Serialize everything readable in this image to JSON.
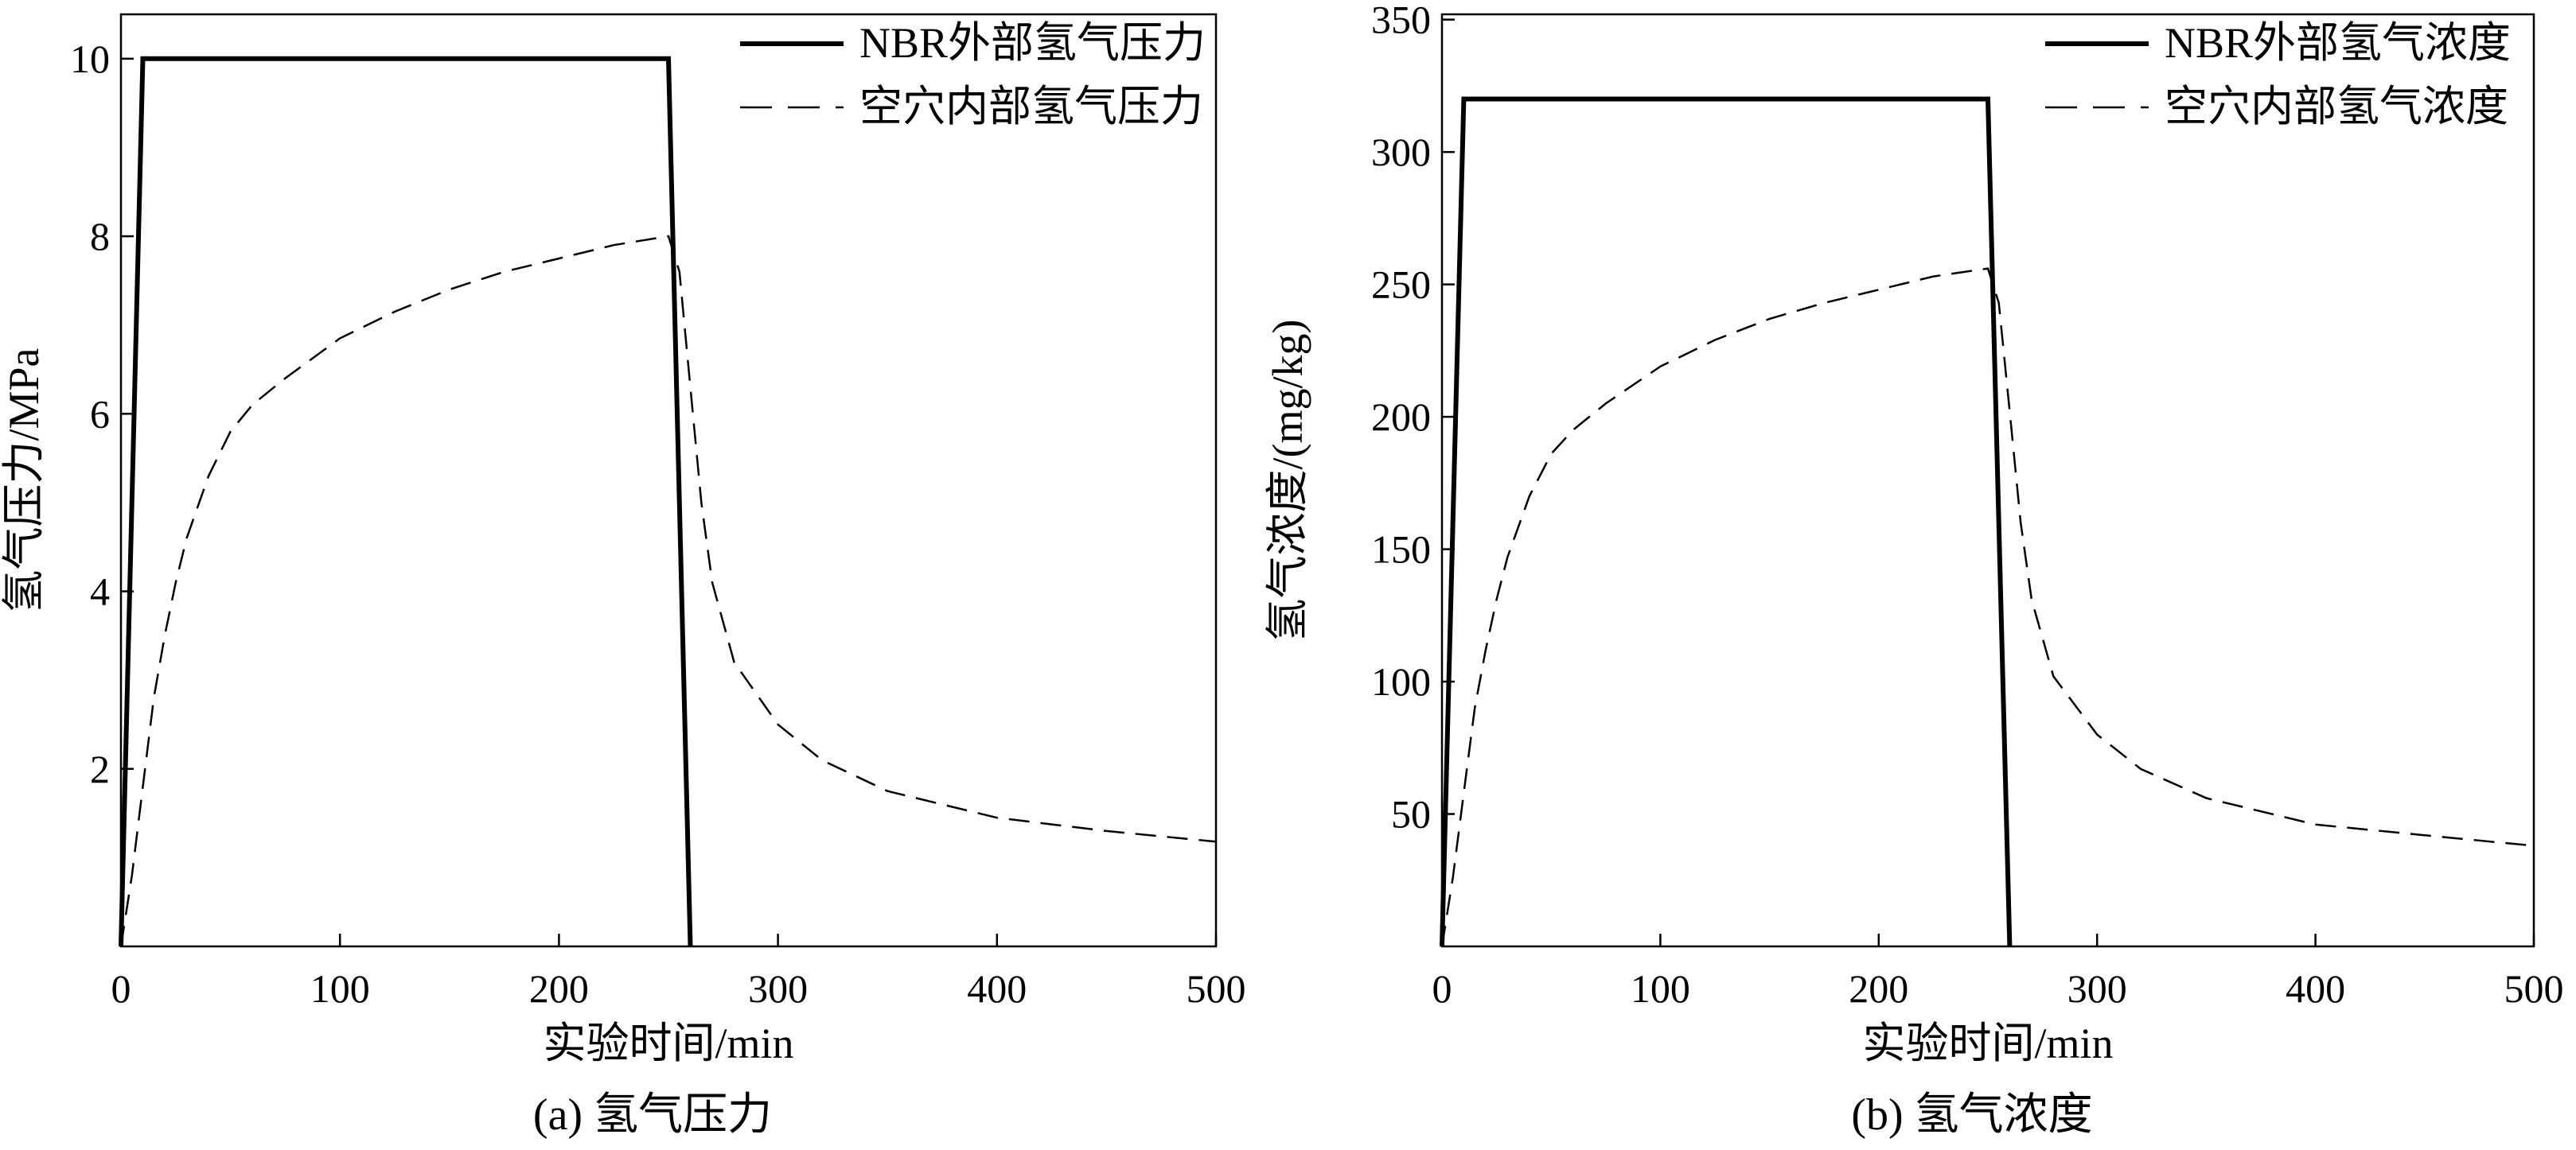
{
  "chart_data": [
    {
      "type": "line",
      "title": "",
      "caption": "(a) 氢气压力",
      "xlabel": "实验时间/min",
      "ylabel": "氢气压力/MPa",
      "xlim": [
        0,
        500
      ],
      "ylim": [
        0,
        10.5
      ],
      "xticks": [
        0,
        100,
        200,
        300,
        400,
        500
      ],
      "xtick_labels": [
        "0",
        "100",
        "200",
        "300",
        "400",
        "500"
      ],
      "yticks": [
        2,
        4,
        6,
        8,
        10
      ],
      "ytick_labels": [
        "2",
        "4",
        "6",
        "8",
        "10"
      ],
      "grid": false,
      "legend_position": "top-right",
      "series": [
        {
          "name": "NBR外部氢气压力",
          "style": "solid",
          "color": "#000000",
          "x": [
            0,
            10,
            250,
            260
          ],
          "y": [
            0,
            10,
            10,
            0
          ]
        },
        {
          "name": "空穴内部氢气压力",
          "style": "dashed",
          "color": "#000000",
          "x": [
            0,
            5,
            10,
            15,
            20,
            25,
            30,
            40,
            50,
            60,
            75,
            100,
            125,
            150,
            175,
            200,
            225,
            250,
            255,
            260,
            265,
            270,
            280,
            300,
            320,
            350,
            400,
            450,
            500
          ],
          "y": [
            0,
            0.8,
            1.8,
            2.8,
            3.5,
            4.1,
            4.6,
            5.3,
            5.8,
            6.1,
            6.4,
            6.85,
            7.15,
            7.4,
            7.6,
            7.75,
            7.9,
            8.0,
            7.6,
            6.3,
            5.0,
            4.1,
            3.2,
            2.5,
            2.1,
            1.75,
            1.45,
            1.3,
            1.18
          ]
        }
      ]
    },
    {
      "type": "line",
      "title": "",
      "caption": "(b) 氢气浓度",
      "xlabel": "实验时间/min",
      "ylabel": "氢气浓度/(mg/kg)",
      "xlim": [
        0,
        500
      ],
      "ylim": [
        0,
        352
      ],
      "xticks": [
        0,
        100,
        200,
        300,
        400,
        500
      ],
      "xtick_labels": [
        "0",
        "100",
        "200",
        "300",
        "400",
        "500"
      ],
      "yticks": [
        50,
        100,
        150,
        200,
        250,
        300,
        350
      ],
      "ytick_labels": [
        "50",
        "100",
        "150",
        "200",
        "250",
        "300",
        "350"
      ],
      "grid": false,
      "legend_position": "top-right",
      "series": [
        {
          "name": "NBR外部氢气浓度",
          "style": "solid",
          "color": "#000000",
          "x": [
            0,
            10,
            250,
            260
          ],
          "y": [
            0,
            320,
            320,
            0
          ]
        },
        {
          "name": "空穴内部氢气浓度",
          "style": "dashed",
          "color": "#000000",
          "x": [
            0,
            5,
            10,
            15,
            20,
            25,
            30,
            40,
            50,
            60,
            75,
            100,
            125,
            150,
            175,
            200,
            225,
            250,
            255,
            260,
            265,
            270,
            280,
            300,
            320,
            350,
            400,
            450,
            500
          ],
          "y": [
            0,
            26,
            58,
            90,
            112,
            131,
            147,
            170,
            186,
            195,
            205,
            219,
            229,
            237,
            243,
            248,
            253,
            256,
            243,
            202,
            160,
            131,
            102,
            80,
            67,
            56,
            46,
            42,
            38
          ]
        }
      ]
    }
  ]
}
